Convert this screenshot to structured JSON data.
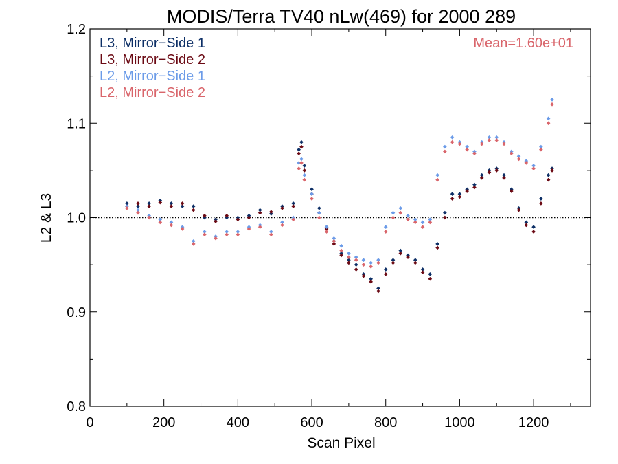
{
  "chart_data": {
    "type": "scatter",
    "title": "MODIS/Terra TV40 nLw(469) for 2000 289",
    "xlabel": "Scan Pixel",
    "ylabel": "L2 & L3",
    "xlim": [
      0,
      1354
    ],
    "ylim": [
      0.8,
      1.2
    ],
    "xticks": [
      0,
      200,
      400,
      600,
      800,
      1000,
      1200
    ],
    "xtick_labels": [
      "0",
      "200",
      "400",
      "600",
      "800",
      "1000",
      "1200"
    ],
    "yticks": [
      0.8,
      0.9,
      1.0,
      1.1,
      1.2
    ],
    "ytick_labels": [
      "0.8",
      "0.9",
      "1.0",
      "1.1",
      "1.2"
    ],
    "reference_line": {
      "y": 1.0,
      "style": "dotted"
    },
    "annotation": {
      "text": "Mean=1.60e+01",
      "color": "#d9656b",
      "placement": "top-right"
    },
    "legend_placement": "top-left",
    "grid": false,
    "series": [
      {
        "name": "L3, Mirror−Side 1",
        "color": "#0d2f66",
        "points": [
          [
            100,
            1.015
          ],
          [
            130,
            1.012
          ],
          [
            160,
            1.015
          ],
          [
            190,
            1.018
          ],
          [
            220,
            1.015
          ],
          [
            250,
            1.012
          ],
          [
            280,
            1.012
          ],
          [
            310,
            1.0
          ],
          [
            340,
            0.998
          ],
          [
            370,
            1.0
          ],
          [
            400,
            1.0
          ],
          [
            430,
            1.002
          ],
          [
            460,
            1.008
          ],
          [
            490,
            1.004
          ],
          [
            520,
            1.012
          ],
          [
            550,
            1.015
          ],
          [
            565,
            1.072
          ],
          [
            572,
            1.08
          ],
          [
            580,
            1.055
          ],
          [
            600,
            1.03
          ],
          [
            620,
            1.01
          ],
          [
            640,
            0.99
          ],
          [
            660,
            0.975
          ],
          [
            680,
            0.962
          ],
          [
            700,
            0.955
          ],
          [
            720,
            0.95
          ],
          [
            740,
            0.94
          ],
          [
            760,
            0.935
          ],
          [
            780,
            0.925
          ],
          [
            800,
            0.945
          ],
          [
            820,
            0.955
          ],
          [
            840,
            0.965
          ],
          [
            860,
            0.96
          ],
          [
            880,
            0.955
          ],
          [
            900,
            0.945
          ],
          [
            920,
            0.94
          ],
          [
            940,
            0.972
          ],
          [
            960,
            1.005
          ],
          [
            980,
            1.025
          ],
          [
            1000,
            1.025
          ],
          [
            1020,
            1.03
          ],
          [
            1040,
            1.035
          ],
          [
            1060,
            1.045
          ],
          [
            1080,
            1.05
          ],
          [
            1100,
            1.052
          ],
          [
            1120,
            1.045
          ],
          [
            1140,
            1.03
          ],
          [
            1160,
            1.01
          ],
          [
            1180,
            0.995
          ],
          [
            1200,
            0.99
          ],
          [
            1220,
            1.02
          ],
          [
            1240,
            1.045
          ],
          [
            1250,
            1.052
          ]
        ]
      },
      {
        "name": "L3, Mirror−Side 2",
        "color": "#6b0a14",
        "points": [
          [
            100,
            1.012
          ],
          [
            130,
            1.015
          ],
          [
            160,
            1.012
          ],
          [
            190,
            1.016
          ],
          [
            220,
            1.012
          ],
          [
            250,
            1.015
          ],
          [
            280,
            1.008
          ],
          [
            310,
            1.002
          ],
          [
            340,
            0.996
          ],
          [
            370,
            1.002
          ],
          [
            400,
            0.998
          ],
          [
            430,
            1.0
          ],
          [
            460,
            1.005
          ],
          [
            490,
            1.006
          ],
          [
            520,
            1.01
          ],
          [
            550,
            1.012
          ],
          [
            565,
            1.068
          ],
          [
            572,
            1.075
          ],
          [
            580,
            1.05
          ],
          [
            600,
            1.025
          ],
          [
            620,
            1.005
          ],
          [
            640,
            0.988
          ],
          [
            660,
            0.972
          ],
          [
            680,
            0.96
          ],
          [
            700,
            0.952
          ],
          [
            720,
            0.945
          ],
          [
            740,
            0.938
          ],
          [
            760,
            0.932
          ],
          [
            780,
            0.922
          ],
          [
            800,
            0.94
          ],
          [
            820,
            0.952
          ],
          [
            840,
            0.962
          ],
          [
            860,
            0.958
          ],
          [
            880,
            0.952
          ],
          [
            900,
            0.942
          ],
          [
            920,
            0.935
          ],
          [
            940,
            0.968
          ],
          [
            960,
            1.0
          ],
          [
            980,
            1.02
          ],
          [
            1000,
            1.022
          ],
          [
            1020,
            1.028
          ],
          [
            1040,
            1.032
          ],
          [
            1060,
            1.042
          ],
          [
            1080,
            1.048
          ],
          [
            1100,
            1.05
          ],
          [
            1120,
            1.042
          ],
          [
            1140,
            1.028
          ],
          [
            1160,
            1.008
          ],
          [
            1180,
            0.992
          ],
          [
            1200,
            0.985
          ],
          [
            1220,
            1.015
          ],
          [
            1240,
            1.04
          ],
          [
            1250,
            1.05
          ]
        ]
      },
      {
        "name": "L2, Mirror−Side 1",
        "color": "#6b9be8",
        "points": [
          [
            100,
            1.012
          ],
          [
            130,
            1.008
          ],
          [
            160,
            1.002
          ],
          [
            190,
            0.998
          ],
          [
            220,
            0.995
          ],
          [
            250,
            0.99
          ],
          [
            280,
            0.975
          ],
          [
            310,
            0.985
          ],
          [
            340,
            0.98
          ],
          [
            370,
            0.985
          ],
          [
            400,
            0.985
          ],
          [
            430,
            0.99
          ],
          [
            460,
            0.992
          ],
          [
            490,
            0.985
          ],
          [
            520,
            0.995
          ],
          [
            550,
            1.0
          ],
          [
            565,
            1.058
          ],
          [
            572,
            1.062
          ],
          [
            580,
            1.045
          ],
          [
            600,
            1.025
          ],
          [
            620,
            1.005
          ],
          [
            640,
            0.99
          ],
          [
            660,
            0.978
          ],
          [
            680,
            0.97
          ],
          [
            700,
            0.962
          ],
          [
            720,
            0.958
          ],
          [
            740,
            0.955
          ],
          [
            760,
            0.952
          ],
          [
            780,
            0.955
          ],
          [
            800,
            0.99
          ],
          [
            820,
            1.005
          ],
          [
            840,
            1.01
          ],
          [
            860,
            1.002
          ],
          [
            880,
            0.998
          ],
          [
            900,
            0.995
          ],
          [
            920,
            0.998
          ],
          [
            940,
            1.045
          ],
          [
            960,
            1.075
          ],
          [
            980,
            1.085
          ],
          [
            1000,
            1.08
          ],
          [
            1020,
            1.075
          ],
          [
            1040,
            1.07
          ],
          [
            1060,
            1.08
          ],
          [
            1080,
            1.085
          ],
          [
            1100,
            1.085
          ],
          [
            1120,
            1.08
          ],
          [
            1140,
            1.07
          ],
          [
            1160,
            1.065
          ],
          [
            1180,
            1.06
          ],
          [
            1200,
            1.055
          ],
          [
            1220,
            1.075
          ],
          [
            1240,
            1.105
          ],
          [
            1250,
            1.125
          ]
        ]
      },
      {
        "name": "L2, Mirror−Side 2",
        "color": "#d9656b",
        "points": [
          [
            100,
            1.01
          ],
          [
            130,
            1.005
          ],
          [
            160,
            1.0
          ],
          [
            190,
            0.995
          ],
          [
            220,
            0.992
          ],
          [
            250,
            0.988
          ],
          [
            280,
            0.972
          ],
          [
            310,
            0.982
          ],
          [
            340,
            0.978
          ],
          [
            370,
            0.982
          ],
          [
            400,
            0.982
          ],
          [
            430,
            0.988
          ],
          [
            460,
            0.99
          ],
          [
            490,
            0.982
          ],
          [
            520,
            0.992
          ],
          [
            550,
            0.998
          ],
          [
            565,
            1.052
          ],
          [
            572,
            1.058
          ],
          [
            580,
            1.04
          ],
          [
            600,
            1.02
          ],
          [
            620,
            1.0
          ],
          [
            640,
            0.985
          ],
          [
            660,
            0.975
          ],
          [
            680,
            0.965
          ],
          [
            700,
            0.958
          ],
          [
            720,
            0.955
          ],
          [
            740,
            0.95
          ],
          [
            760,
            0.948
          ],
          [
            780,
            0.952
          ],
          [
            800,
            0.985
          ],
          [
            820,
            1.0
          ],
          [
            840,
            1.005
          ],
          [
            860,
            0.998
          ],
          [
            880,
            0.995
          ],
          [
            900,
            0.99
          ],
          [
            920,
            0.995
          ],
          [
            940,
            1.04
          ],
          [
            960,
            1.07
          ],
          [
            980,
            1.08
          ],
          [
            1000,
            1.078
          ],
          [
            1020,
            1.072
          ],
          [
            1040,
            1.068
          ],
          [
            1060,
            1.078
          ],
          [
            1080,
            1.082
          ],
          [
            1100,
            1.082
          ],
          [
            1120,
            1.078
          ],
          [
            1140,
            1.068
          ],
          [
            1160,
            1.062
          ],
          [
            1180,
            1.058
          ],
          [
            1200,
            1.052
          ],
          [
            1220,
            1.072
          ],
          [
            1240,
            1.1
          ],
          [
            1250,
            1.12
          ]
        ]
      }
    ]
  }
}
